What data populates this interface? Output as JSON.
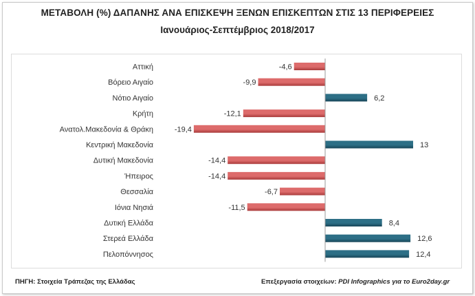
{
  "header": {
    "title": "ΜΕΤΑΒΟΛΗ (%) ΔΑΠΑΝΗΣ ΑΝΑ ΕΠΙΣΚΕΨΗ ΞΕΝΩΝ ΕΠΙΣΚΕΠΤΩΝ ΣΤΙΣ 13 ΠΕΡΙΦΕΡΕΙΕΣ",
    "subtitle": "Ιανουάριος-Σεπτέμβριος 2018/2017"
  },
  "footer": {
    "source": "ΠΗΓΗ: Στοιχεία Τράπεζας της Ελλάδας",
    "credit_label": "Επεξεργασία στοιχείων:",
    "credit_text": "PDI Infographics για το Euro2day.gr"
  },
  "colors": {
    "negative": "#dd6b6b",
    "negative_dark": "#a83a3a",
    "positive": "#2d6f86",
    "positive_dark": "#174557"
  },
  "chart_data": {
    "type": "bar",
    "orientation": "horizontal",
    "title": "ΜΕΤΑΒΟΛΗ (%) ΔΑΠΑΝΗΣ ΑΝΑ ΕΠΙΣΚΕΨΗ ΞΕΝΩΝ ΕΠΙΣΚΕΠΤΩΝ ΣΤΙΣ 13 ΠΕΡΙΦΕΡΕΙΕΣ",
    "subtitle": "Ιανουάριος-Σεπτέμβριος 2018/2017",
    "categories": [
      "Αττική",
      "Βόρειο Αιγαίο",
      "Νότιο Αιγαίο",
      "Κρήτη",
      "Ανατολ.Μακεδονία & Θράκη",
      "Κεντρική Μακεδονία",
      "Δυτική Μακεδονία",
      "Ήπειρος",
      "Θεσσαλία",
      "Ιόνια Νησιά",
      "Δυτική Ελλάδα",
      "Στερεά Ελλάδα",
      "Πελοπόννησος"
    ],
    "values": [
      -4.6,
      -9.9,
      6.2,
      -12.1,
      -19.4,
      13,
      -14.4,
      -14.4,
      -6.7,
      -11.5,
      8.4,
      12.6,
      12.4
    ],
    "value_labels": [
      "-4,6",
      "-9,9",
      "6,2",
      "-12,1",
      "-19,4",
      "13",
      "-14,4",
      "-14,4",
      "-6,7",
      "-11,5",
      "8,4",
      "12,6",
      "12,4"
    ],
    "xlim": [
      -21,
      16
    ],
    "grid": false,
    "legend": "none",
    "xlabel": "",
    "ylabel": ""
  }
}
